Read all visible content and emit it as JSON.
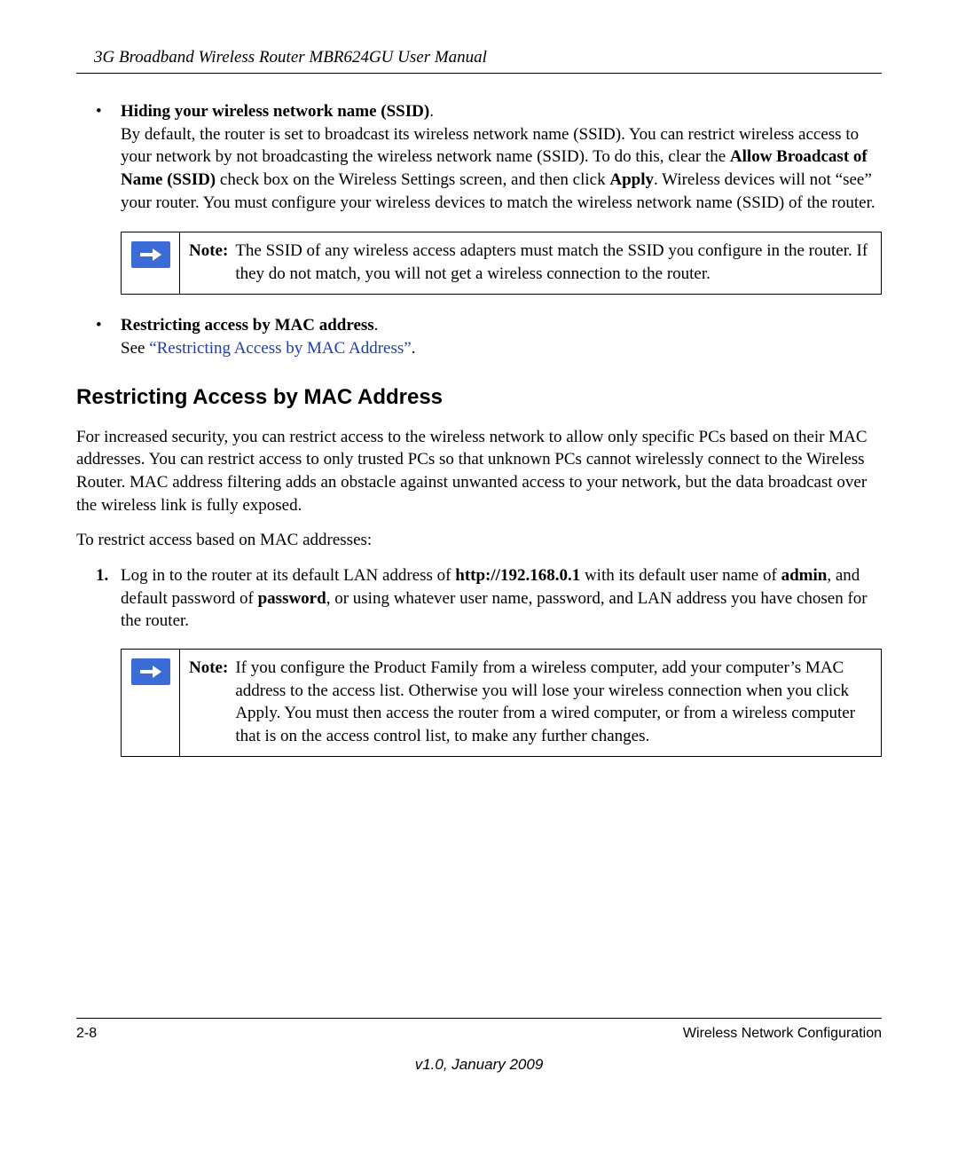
{
  "header": {
    "title": "3G Broadband Wireless Router MBR624GU User Manual"
  },
  "bullet1": {
    "title": "Hiding your wireless network name (SSID)",
    "body_part1": "By default, the router is set to broadcast its wireless network name (SSID). You can restrict wireless access to your network by not broadcasting the wireless network name (SSID). To do this, clear the ",
    "bold1": "Allow Broadcast of Name (SSID)",
    "body_part2": " check box on the Wireless Settings screen, and then click ",
    "bold2": "Apply",
    "body_part3": ". Wireless devices will not “see” your router. You must configure your wireless devices to match the wireless network name (SSID) of the router."
  },
  "note1": {
    "label": "Note:",
    "body": "The SSID of any wireless access adapters must match the SSID you configure in the router. If they do not match, you will not get a wireless connection to the router."
  },
  "bullet2": {
    "title": "Restricting access by MAC address",
    "see_prefix": "See ",
    "link": "“Restricting Access by MAC Address”",
    "suffix": "."
  },
  "section": {
    "heading": "Restricting Access by MAC Address",
    "para1": "For increased security, you can restrict access to the wireless network to allow only specific PCs based on their MAC addresses. You can restrict access to only trusted PCs so that unknown PCs cannot wirelessly connect to the Wireless Router. MAC address filtering adds an obstacle against unwanted access to your network, but the data broadcast over the wireless link is fully exposed.",
    "para2": "To restrict access based on MAC addresses:"
  },
  "step1": {
    "num": "1.",
    "part1": "Log in to the router at its default LAN address of ",
    "bold1": "http://192.168.0.1",
    "part2": " with its default user name of ",
    "bold2": "admin",
    "part3": ", and default password of ",
    "bold3": "password",
    "part4": ", or using whatever user name, password, and LAN address you have chosen for the router."
  },
  "note2": {
    "label": "Note:",
    "body": "If you configure the Product Family from a wireless computer, add your computer’s MAC address to the access list. Otherwise you will lose your wireless connection when you click Apply. You must then access the router from a wired computer, or from a wireless computer that is on the access control list, to make any further changes."
  },
  "footer": {
    "page": "2-8",
    "section": "Wireless Network Configuration",
    "version": "v1.0, January 2009"
  }
}
